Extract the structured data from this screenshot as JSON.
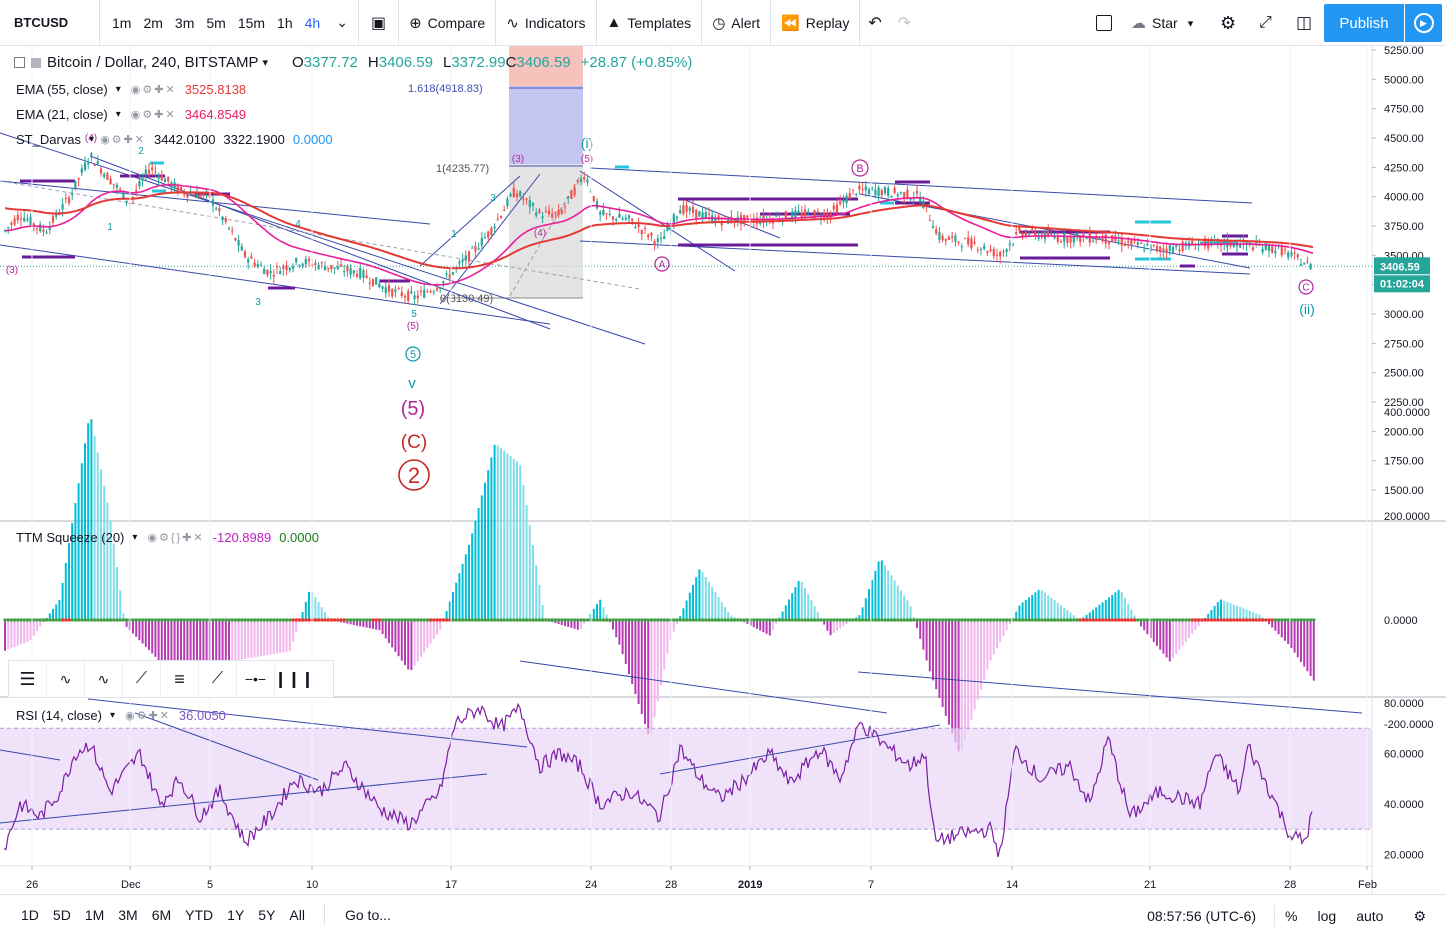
{
  "toolbar": {
    "symbol": "BTCUSD",
    "intervals": [
      "1m",
      "2m",
      "3m",
      "5m",
      "15m",
      "1h",
      "4h"
    ],
    "active_interval": "4h",
    "compare": "Compare",
    "indicators": "Indicators",
    "templates": "Templates",
    "alert": "Alert",
    "replay": "Replay",
    "star": "Star",
    "publish": "Publish"
  },
  "legend": {
    "title": "Bitcoin / Dollar, 240, BITSTAMP",
    "o_label": "O",
    "o": "3377.72",
    "h_label": "H",
    "h": "3406.59",
    "l_label": "L",
    "l": "3372.99",
    "c_label": "C",
    "c": "3406.59",
    "change": "+28.87 (+0.85%)",
    "ema55_name": "EMA (55, close)",
    "ema55": "3525.8138",
    "ema21_name": "EMA (21, close)",
    "ema21": "3464.8549",
    "darvas_name": "ST_Darvas",
    "darvas_v1": "3442.0100",
    "darvas_v2": "3322.1900",
    "darvas_v3": "0.0000",
    "ttm_name": "TTM Squeeze (20)",
    "ttm_v1": "-120.8989",
    "ttm_v2": "0.0000",
    "rsi_name": "RSI (14, close)",
    "rsi": "36.0050"
  },
  "price_scale": [
    "5250.00",
    "5000.00",
    "4750.00",
    "4500.00",
    "4250.00",
    "4000.00",
    "3750.00",
    "3500.00",
    "3250.00",
    "3000.00",
    "2750.00",
    "2500.00",
    "2250.00",
    "2000.00",
    "1750.00",
    "1500.00"
  ],
  "current_price": "3406.59",
  "countdown": "01:02:04",
  "ttm_scale": [
    "400.0000",
    "200.0000",
    "0.0000",
    "-200.0000"
  ],
  "rsi_scale": [
    "80.0000",
    "60.0000",
    "40.0000",
    "20.0000"
  ],
  "time_axis": [
    "26",
    "Dec",
    "5",
    "10",
    "17",
    "24",
    "28",
    "2019",
    "7",
    "14",
    "21",
    "28",
    "Feb"
  ],
  "annotations": {
    "fib_1618": "1.618(4918.83)",
    "fib_1": "1(4235.77)",
    "fib_0": "0(3130.49)",
    "wave_i": "(i)",
    "wave_ii": "(ii)",
    "wave_v": "v",
    "wave_5": "(5)",
    "wave_C": "(C)",
    "wave_2": "2",
    "circ_A": "A",
    "circ_B": "B",
    "circ_C": "C",
    "circ_5": "5",
    "lbl_3": "(3)",
    "lbl_4": "(4)",
    "lbl_5": "(5)",
    "lbl_1": "1",
    "lbl_2": "2",
    "lbl_3s": "3",
    "lbl_4s": "4",
    "lbl_5s": "5"
  },
  "bottom": {
    "ranges": [
      "1D",
      "5D",
      "1M",
      "3M",
      "6M",
      "YTD",
      "1Y",
      "5Y",
      "All"
    ],
    "goto": "Go to...",
    "time": "08:57:56 (UTC-6)",
    "percent": "%",
    "log": "log",
    "auto": "auto"
  },
  "chart_data": {
    "type": "candlestick",
    "panes": [
      {
        "name": "price",
        "ylim": [
          1250,
          5300
        ],
        "current": 3406.59
      },
      {
        "name": "TTM Squeeze (20)",
        "ylim": [
          -350,
          430
        ]
      },
      {
        "name": "RSI (14, close)",
        "ylim": [
          15,
          82
        ],
        "band": [
          30,
          70
        ]
      }
    ]
  }
}
